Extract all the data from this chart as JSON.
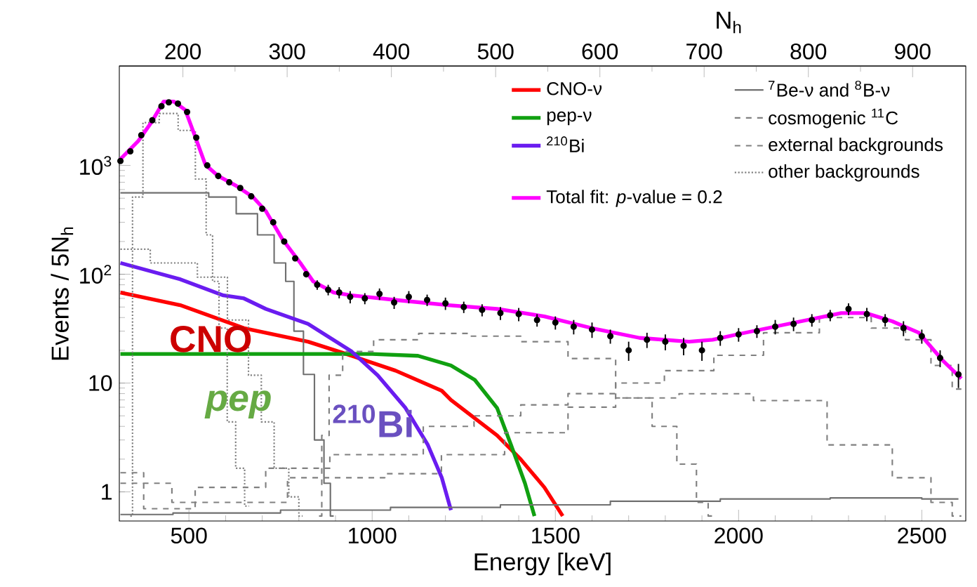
{
  "chart_data": {
    "type": "line",
    "xlabel": "Energy [keV]",
    "ylabel": "Events / 5N$_{h}$",
    "x2label": "N$_{h}$",
    "xlim": [
      310,
      2620
    ],
    "xticks": [
      500,
      1000,
      1500,
      2000,
      2500
    ],
    "x2lim": [
      139,
      951
    ],
    "x2ticks": [
      200,
      300,
      400,
      500,
      600,
      700,
      800,
      900
    ],
    "ylim": [
      0.54,
      8200
    ],
    "yticks": [
      1,
      10,
      {
        "value": 100,
        "label": "10$^{2}$"
      },
      {
        "value": 1000,
        "label": "10$^{3}$"
      }
    ],
    "log": "y",
    "legend": "top right",
    "annotations": [
      "CNO",
      "pep",
      "$^{210}$Bi"
    ],
    "series": [
      {
        "name": "CNO-ν",
        "line_style": "solid",
        "color": "#ff0000",
        "x": [
          313,
          476,
          650,
          825,
          919,
          1064,
          1190,
          1215,
          1341,
          1405,
          1470,
          1520
        ],
        "values": [
          68,
          52,
          32,
          24,
          19,
          13,
          8.5,
          7,
          3.3,
          2,
          1.1,
          0.6
        ]
      },
      {
        "name": "$^{7}$Be-ν and $^{8}$B-ν",
        "type": "step",
        "line_style": "solid",
        "color": "#707070",
        "x": [
          313,
          514,
          594,
          664,
          710,
          755,
          773,
          800,
          825,
          860,
          877,
          895
        ],
        "values": [
          560,
          560,
          512,
          360,
          230,
          127,
          86,
          30,
          12,
          3,
          1.2,
          0.6
        ]
      },
      {
        "name": "pep-ν",
        "line_style": "solid",
        "color": "#10a010",
        "x": [
          313,
          700,
          1000,
          1125,
          1215,
          1280,
          1341,
          1379,
          1417,
          1443
        ],
        "values": [
          18.5,
          18.5,
          18.5,
          17.8,
          14.5,
          10.7,
          5.9,
          2.7,
          1.2,
          0.6
        ]
      },
      {
        "name": "cosmogenic $^{11}$C",
        "type": "step",
        "line_style": "dashed",
        "color": "#808080",
        "x": [
          855,
          870,
          895,
          944,
          1064,
          1190,
          1341,
          1470,
          1599,
          1730,
          1798,
          1865,
          1905,
          1929
        ],
        "values": [
          0.6,
          3.3,
          11.8,
          19.5,
          25,
          28.6,
          27,
          24,
          16.8,
          7.3,
          4,
          1.8,
          0.8,
          0.6
        ]
      },
      {
        "name": "$^{210}$Bi",
        "line_style": "solid",
        "color": "#6a1cf0",
        "x": [
          313,
          476,
          594,
          650,
          710,
          825,
          944,
          1015,
          1091,
          1152,
          1190,
          1215
        ],
        "values": [
          127,
          90,
          64,
          60,
          48,
          35,
          19.5,
          11.8,
          5.9,
          2.7,
          1.35,
          0.68
        ]
      },
      {
        "name": "external backgrounds",
        "type": "step",
        "line_style": "dashed",
        "color": "#808080",
        "x": [
          313,
          440,
          594,
          825,
          944,
          1064,
          1215,
          1341,
          1470,
          1599,
          1730,
          1865,
          2000,
          2136,
          2305,
          2419,
          2492,
          2558,
          2608
        ],
        "values": [
          1.5,
          0.7,
          1.1,
          1.65,
          2.2,
          2.2,
          4,
          5,
          6.3,
          8,
          10,
          13,
          18,
          29,
          40,
          32,
          25,
          14.5,
          8.8
        ]
      },
      {
        "name": "other backgrounds",
        "type": "step",
        "line_style": "dotted",
        "color": "#808080",
        "x": [
          340,
          352,
          397,
          441,
          500,
          535,
          559,
          570,
          594,
          615,
          640,
          664
        ],
        "values": [
          0.6,
          512,
          2475,
          3000,
          2100,
          750,
          230,
          86,
          32,
          4.4,
          1.65,
          0.74
        ]
      },
      {
        "name": "Total fit: *p*-value = 0.2",
        "line_style": "solid",
        "color": "#ff00ff",
        "x": [
          313,
          362,
          397,
          431,
          459,
          490,
          517,
          545,
          580,
          629,
          675,
          710,
          755,
          804,
          839,
          895,
          944,
          1064,
          1208,
          1341,
          1470,
          1599,
          1730,
          1865,
          1929,
          1996,
          2136,
          2280,
          2347,
          2419,
          2492,
          2558,
          2608
        ],
        "values": [
          1143,
          1683,
          2475,
          3865,
          3865,
          3235,
          1840,
          1015,
          800,
          650,
          512,
          380,
          210,
          127,
          86,
          68,
          64,
          58,
          52,
          48,
          41,
          32,
          26,
          24,
          25,
          28,
          35,
          44,
          44,
          37,
          29,
          16,
          11
        ]
      },
      {
        "type": "step",
        "line_style": "solid",
        "color": "#707070",
        "x": [
          313,
          600,
          900,
          1200,
          1500,
          1800,
          2100,
          2400,
          2600
        ],
        "values": [
          0.62,
          0.64,
          0.68,
          0.72,
          0.76,
          0.82,
          0.86,
          0.88,
          0.86
        ]
      },
      {
        "type": "step",
        "line_style": "dashed",
        "color": "#808080",
        "x": [
          313,
          594,
          944,
          1125,
          1253,
          1470,
          1599,
          1730,
          1945,
          2136,
          2347,
          2492,
          2558,
          2608
        ],
        "values": [
          1.2,
          0.8,
          1.35,
          1.47,
          2.2,
          3.5,
          6,
          7.3,
          8,
          6.9,
          2.7,
          1.35,
          0.8,
          0.6
        ]
      },
      {
        "type": "step",
        "line_style": "dotted",
        "color": "#808080",
        "x": [
          313,
          476,
          570,
          640,
          685,
          710,
          755,
          790,
          810
        ],
        "values": [
          170,
          127,
          94,
          38,
          11.8,
          4.4,
          1.65,
          0.9,
          0.6
        ]
      },
      {
        "type": "scatter",
        "marker": "circle",
        "color": "#000000",
        "x": [
          313,
          340,
          370,
          400,
          425,
          445,
          470,
          495,
          520,
          550,
          580,
          610,
          640,
          670,
          700,
          730,
          760,
          790,
          820,
          850,
          880,
          910,
          940,
          980,
          1020,
          1060,
          1100,
          1150,
          1200,
          1250,
          1300,
          1350,
          1400,
          1450,
          1500,
          1550,
          1600,
          1650,
          1700,
          1750,
          1800,
          1850,
          1900,
          1950,
          2000,
          2050,
          2100,
          2150,
          2200,
          2250,
          2300,
          2350,
          2400,
          2450,
          2500,
          2550,
          2600
        ],
        "values": [
          1100,
          1350,
          1900,
          2600,
          3500,
          3800,
          3700,
          3100,
          1800,
          1000,
          800,
          700,
          620,
          520,
          400,
          300,
          200,
          140,
          100,
          80,
          72,
          68,
          62,
          60,
          66,
          55,
          62,
          58,
          54,
          50,
          47,
          44,
          43,
          38,
          36,
          33,
          31,
          27,
          20,
          25,
          24,
          22,
          20,
          26,
          28,
          30,
          33,
          35,
          38,
          42,
          48,
          43,
          38,
          32,
          27,
          17,
          12
        ],
        "errors": [
          null,
          null,
          null,
          null,
          null,
          null,
          null,
          null,
          null,
          null,
          null,
          null,
          null,
          null,
          null,
          null,
          null,
          null,
          null,
          8,
          8,
          8,
          8,
          7,
          8,
          7,
          8,
          7,
          7,
          6,
          6,
          6,
          6,
          5,
          5,
          5,
          5,
          4,
          4,
          4,
          4,
          4,
          4,
          4,
          4,
          4,
          5,
          5,
          5,
          5,
          6,
          6,
          5,
          5,
          4,
          3,
          3
        ]
      }
    ]
  }
}
